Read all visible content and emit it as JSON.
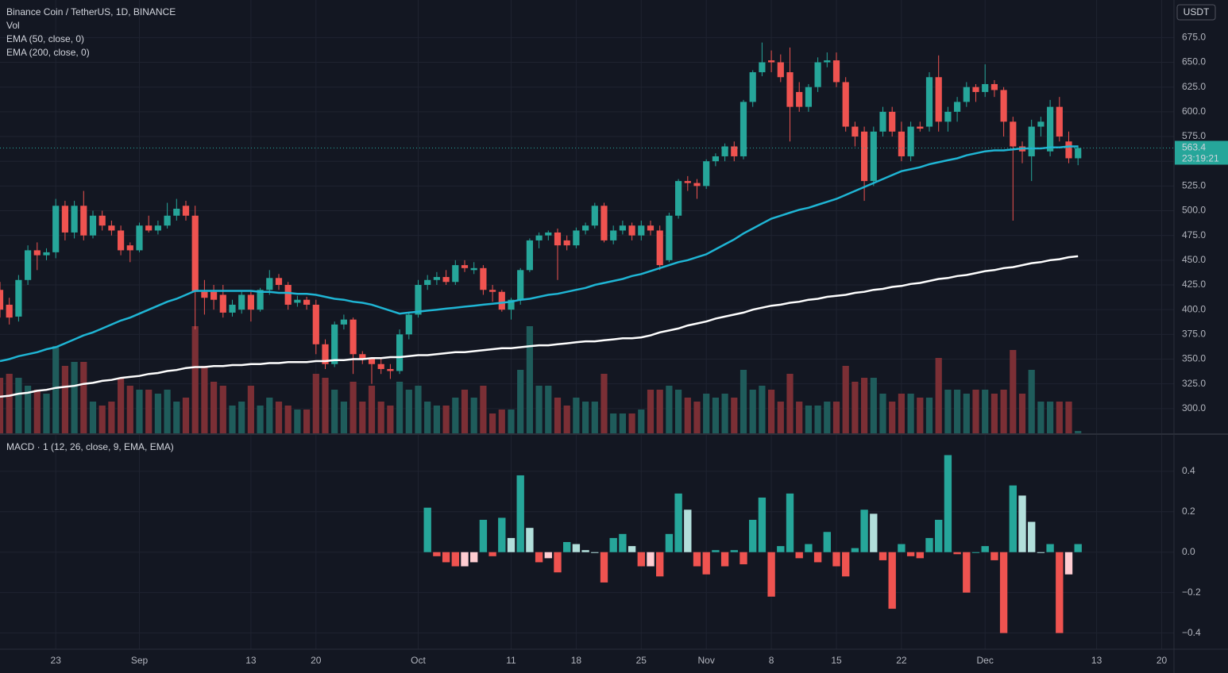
{
  "chart_data": {
    "type": "candlestick",
    "title": "Binance Coin / TetherUS, 1D, BINANCE",
    "volume_label": "Vol",
    "currency": "USDT",
    "countdown": "23:19:21",
    "up_color": "#26a69a",
    "down_color": "#ef5350",
    "volume_up_color": "#1f5c5b",
    "volume_down_color": "#7b2f35",
    "grid": true,
    "categories": [
      null,
      null,
      null,
      null,
      null,
      null,
      "23",
      null,
      null,
      null,
      null,
      null,
      null,
      null,
      null,
      "Sep",
      null,
      null,
      null,
      null,
      null,
      null,
      null,
      null,
      null,
      null,
      null,
      "13",
      null,
      null,
      null,
      null,
      null,
      null,
      "20",
      null,
      null,
      null,
      null,
      null,
      null,
      null,
      null,
      null,
      null,
      "Oct",
      null,
      null,
      null,
      null,
      null,
      null,
      null,
      null,
      null,
      "11",
      null,
      null,
      null,
      null,
      null,
      null,
      "18",
      null,
      null,
      null,
      null,
      null,
      null,
      "25",
      null,
      null,
      null,
      null,
      null,
      null,
      "Nov",
      null,
      null,
      null,
      null,
      null,
      null,
      "8",
      null,
      null,
      null,
      null,
      null,
      null,
      "15",
      null,
      null,
      null,
      null,
      null,
      null,
      "22",
      null,
      null,
      null,
      null,
      null,
      null,
      null,
      null,
      "Dec",
      null,
      null,
      null,
      null,
      null,
      null,
      null,
      null,
      null,
      null,
      null,
      "13",
      null,
      null,
      null,
      null,
      null,
      null,
      "20"
    ],
    "open": [
      420,
      405,
      393,
      430,
      460,
      455,
      458,
      505,
      478,
      505,
      475,
      495,
      485,
      480,
      465,
      460,
      485,
      480,
      485,
      495,
      505,
      495,
      418,
      418,
      415,
      397,
      400,
      415,
      400,
      420,
      432,
      425,
      407,
      410,
      405,
      365,
      345,
      385,
      390,
      355,
      350,
      345,
      340,
      338,
      375,
      395,
      425,
      430,
      433,
      428,
      445,
      440,
      442,
      420,
      418,
      400,
      410,
      440,
      470,
      475,
      478,
      470,
      465,
      480,
      485,
      505,
      470,
      480,
      485,
      475,
      485,
      480,
      450,
      495,
      530,
      528,
      525,
      550,
      555,
      565,
      555,
      610,
      640,
      652,
      650,
      640,
      620,
      605,
      625,
      650,
      652,
      630,
      585,
      580,
      530,
      580,
      600,
      580,
      555,
      585,
      585,
      635,
      590,
      600,
      610,
      625,
      620,
      628,
      622,
      590,
      565,
      555,
      585,
      560,
      605,
      570,
      553,
      null,
      null,
      null,
      null,
      null,
      null,
      null,
      null,
      null
    ],
    "high": [
      428,
      412,
      435,
      465,
      468,
      462,
      512,
      510,
      510,
      520,
      500,
      500,
      490,
      485,
      468,
      488,
      495,
      490,
      508,
      512,
      510,
      505,
      430,
      425,
      425,
      410,
      418,
      418,
      422,
      440,
      436,
      428,
      414,
      413,
      410,
      370,
      388,
      395,
      392,
      358,
      352,
      350,
      345,
      380,
      398,
      430,
      435,
      438,
      440,
      450,
      450,
      448,
      445,
      425,
      420,
      412,
      442,
      472,
      478,
      480,
      482,
      475,
      483,
      488,
      508,
      508,
      485,
      490,
      488,
      490,
      490,
      485,
      498,
      532,
      535,
      532,
      552,
      558,
      568,
      570,
      612,
      642,
      670,
      662,
      658,
      665,
      630,
      628,
      655,
      660,
      660,
      635,
      590,
      585,
      585,
      605,
      605,
      590,
      590,
      590,
      640,
      657,
      605,
      615,
      630,
      628,
      648,
      632,
      625,
      595,
      570,
      592,
      595,
      612,
      615,
      580,
      566,
      null,
      null,
      null,
      null,
      null,
      null,
      null,
      null,
      null
    ],
    "low": [
      392,
      385,
      388,
      425,
      440,
      450,
      452,
      470,
      472,
      470,
      472,
      480,
      475,
      455,
      448,
      458,
      478,
      476,
      482,
      490,
      490,
      380,
      395,
      400,
      392,
      393,
      396,
      388,
      398,
      415,
      420,
      400,
      403,
      400,
      355,
      340,
      342,
      380,
      335,
      345,
      325,
      335,
      330,
      335,
      370,
      392,
      420,
      425,
      425,
      425,
      438,
      436,
      415,
      408,
      398,
      390,
      405,
      438,
      462,
      470,
      430,
      460,
      462,
      476,
      482,
      468,
      466,
      476,
      470,
      470,
      475,
      440,
      448,
      492,
      520,
      512,
      522,
      545,
      550,
      550,
      552,
      605,
      636,
      640,
      630,
      570,
      600,
      600,
      620,
      645,
      625,
      580,
      565,
      510,
      525,
      575,
      575,
      550,
      550,
      580,
      580,
      580,
      580,
      590,
      605,
      610,
      615,
      615,
      575,
      490,
      548,
      530,
      575,
      555,
      570,
      548,
      546,
      null,
      null,
      null,
      null,
      null,
      null,
      null,
      null,
      null
    ],
    "close": [
      400,
      392,
      430,
      460,
      455,
      458,
      505,
      478,
      505,
      475,
      495,
      485,
      480,
      460,
      460,
      485,
      480,
      485,
      495,
      502,
      495,
      418,
      412,
      410,
      397,
      405,
      415,
      400,
      420,
      432,
      425,
      405,
      410,
      405,
      365,
      345,
      385,
      390,
      355,
      350,
      345,
      340,
      338,
      375,
      395,
      425,
      430,
      433,
      428,
      445,
      442,
      442,
      420,
      418,
      400,
      410,
      440,
      470,
      475,
      478,
      465,
      465,
      480,
      485,
      505,
      470,
      480,
      485,
      475,
      485,
      480,
      445,
      495,
      530,
      528,
      525,
      550,
      555,
      565,
      555,
      610,
      640,
      650,
      650,
      635,
      605,
      605,
      625,
      650,
      652,
      630,
      585,
      575,
      530,
      580,
      600,
      580,
      555,
      585,
      583,
      635,
      590,
      600,
      610,
      625,
      620,
      628,
      622,
      590,
      565,
      560,
      585,
      590,
      605,
      575,
      553,
      563.4,
      null,
      null,
      null,
      null,
      null,
      null,
      null,
      null,
      null
    ],
    "volume": [
      70,
      75,
      70,
      60,
      55,
      50,
      110,
      85,
      90,
      90,
      40,
      35,
      40,
      70,
      60,
      55,
      55,
      50,
      55,
      40,
      45,
      135,
      85,
      65,
      60,
      35,
      40,
      60,
      35,
      45,
      40,
      35,
      30,
      30,
      75,
      70,
      55,
      40,
      65,
      40,
      60,
      40,
      35,
      65,
      55,
      60,
      40,
      35,
      35,
      45,
      55,
      45,
      60,
      25,
      30,
      30,
      80,
      135,
      60,
      60,
      45,
      35,
      45,
      40,
      40,
      75,
      25,
      25,
      25,
      30,
      55,
      55,
      60,
      55,
      45,
      40,
      50,
      45,
      50,
      45,
      80,
      55,
      60,
      55,
      40,
      75,
      40,
      35,
      35,
      40,
      40,
      85,
      65,
      70,
      70,
      50,
      40,
      50,
      50,
      45,
      45,
      95,
      55,
      55,
      50,
      55,
      55,
      50,
      55,
      105,
      50,
      80,
      40,
      40,
      40,
      40,
      3,
      null,
      null,
      null,
      null,
      null,
      null,
      null,
      null,
      null
    ],
    "volume_ylim": [
      0,
      546
    ],
    "series": [
      {
        "name": "EMA (50, close, 0)",
        "color": "#1fb5d4",
        "values": [
          348,
          350,
          353,
          355,
          357,
          360,
          362,
          366,
          370,
          374,
          377,
          381,
          385,
          389,
          392,
          396,
          400,
          404,
          408,
          411,
          415,
          419,
          419,
          419,
          419,
          419,
          419,
          419,
          418,
          418,
          417,
          417,
          416,
          416,
          415,
          413,
          411,
          410,
          408,
          407,
          405,
          402,
          399,
          396,
          397,
          398,
          399,
          400,
          401,
          402,
          403,
          404,
          405,
          406,
          407,
          408,
          410,
          411,
          413,
          415,
          416,
          418,
          420,
          422,
          425,
          427,
          429,
          431,
          434,
          436,
          439,
          442,
          445,
          448,
          450,
          453,
          456,
          461,
          466,
          471,
          477,
          482,
          487,
          492,
          495,
          498,
          501,
          503,
          506,
          509,
          512,
          516,
          520,
          524,
          528,
          532,
          536,
          540,
          542,
          544,
          547,
          549,
          551,
          553,
          556,
          558,
          560,
          561,
          561,
          562,
          563,
          563,
          563,
          564,
          564,
          565,
          565,
          null,
          null,
          null,
          null,
          null,
          null,
          null,
          null,
          null
        ]
      },
      {
        "name": "EMA (200, close, 0)",
        "color": "#ffffff",
        "values": [
          312,
          313,
          315,
          316,
          318,
          319,
          321,
          322,
          323,
          325,
          326,
          328,
          329,
          331,
          332,
          333,
          335,
          336,
          338,
          339,
          341,
          342,
          342,
          343,
          343,
          344,
          344,
          345,
          345,
          346,
          346,
          347,
          347,
          347,
          348,
          348,
          349,
          349,
          350,
          350,
          351,
          351,
          352,
          352,
          353,
          354,
          354,
          355,
          356,
          357,
          357,
          358,
          359,
          360,
          361,
          361,
          362,
          363,
          364,
          364,
          365,
          366,
          367,
          368,
          368,
          369,
          370,
          371,
          371,
          372,
          374,
          377,
          379,
          381,
          384,
          386,
          388,
          391,
          393,
          395,
          397,
          400,
          402,
          404,
          405,
          407,
          408,
          410,
          411,
          413,
          414,
          415,
          417,
          418,
          420,
          421,
          423,
          424,
          426,
          427,
          429,
          431,
          432,
          434,
          435,
          437,
          439,
          440,
          442,
          443,
          445,
          447,
          448,
          450,
          451,
          453,
          454,
          null,
          null,
          null,
          null,
          null,
          null,
          null,
          null,
          null
        ]
      }
    ],
    "ylim": [
      275,
      713
    ],
    "yticks": [
      {
        "value": 300,
        "label": "300.0"
      },
      {
        "value": 325,
        "label": "325.0"
      },
      {
        "value": 350,
        "label": "350.0"
      },
      {
        "value": 375,
        "label": "375.0"
      },
      {
        "value": 400,
        "label": "400.0"
      },
      {
        "value": 425,
        "label": "425.0"
      },
      {
        "value": 450,
        "label": "450.0"
      },
      {
        "value": 475,
        "label": "475.0"
      },
      {
        "value": 500,
        "label": "500.0"
      },
      {
        "value": 525,
        "label": "525.0"
      },
      {
        "value": 550,
        "label": "550.0"
      },
      {
        "value": 575,
        "label": "575.0"
      },
      {
        "value": 600,
        "label": "600.0"
      },
      {
        "value": 625,
        "label": "625.0"
      },
      {
        "value": 650,
        "label": "650.0"
      },
      {
        "value": 675,
        "label": "675.0"
      }
    ],
    "macd": {
      "title": "MACD · 1 (12, 26, close, 9, EMA, EMA)",
      "values": [
        null,
        null,
        null,
        null,
        null,
        null,
        null,
        null,
        null,
        null,
        null,
        null,
        null,
        null,
        null,
        null,
        null,
        null,
        null,
        null,
        null,
        null,
        null,
        null,
        null,
        null,
        null,
        null,
        null,
        null,
        null,
        null,
        null,
        null,
        null,
        null,
        null,
        null,
        null,
        null,
        null,
        null,
        null,
        null,
        null,
        null,
        0.22,
        -0.02,
        -0.05,
        -0.07,
        -0.07,
        -0.05,
        0.16,
        -0.02,
        0.17,
        0.07,
        0.38,
        0.12,
        -0.05,
        -0.03,
        -0.1,
        0.05,
        0.04,
        0.01,
        0.0,
        -0.15,
        0.07,
        0.09,
        0.03,
        -0.07,
        -0.07,
        -0.12,
        0.09,
        0.29,
        0.21,
        -0.07,
        -0.11,
        0.01,
        -0.07,
        0.01,
        -0.06,
        0.16,
        0.27,
        -0.22,
        0.03,
        0.29,
        -0.03,
        0.04,
        -0.05,
        0.1,
        -0.07,
        -0.12,
        0.02,
        0.21,
        0.19,
        -0.04,
        -0.28,
        0.04,
        -0.02,
        -0.03,
        0.07,
        0.16,
        0.48,
        -0.01,
        -0.2,
        0.0,
        0.03,
        -0.04,
        -0.4,
        0.33,
        0.28,
        0.15,
        0.0,
        0.04,
        -0.4,
        -0.11,
        0.04,
        null,
        null,
        null,
        null,
        null,
        null,
        null,
        null,
        null
      ],
      "ylim": [
        -0.48,
        0.58
      ],
      "yticks": [
        0.4,
        0.2,
        {
          "value": 0,
          "label": "0.0"
        },
        {
          "value": -0.2,
          "label": "−0.2"
        },
        {
          "value": -0.4,
          "label": "−0.4"
        }
      ],
      "colors": {
        "up_strong": "#26a69a",
        "up_weak": "#b2dfdb",
        "down_strong": "#ef5350",
        "down_weak": "#ffcdd2"
      }
    }
  }
}
